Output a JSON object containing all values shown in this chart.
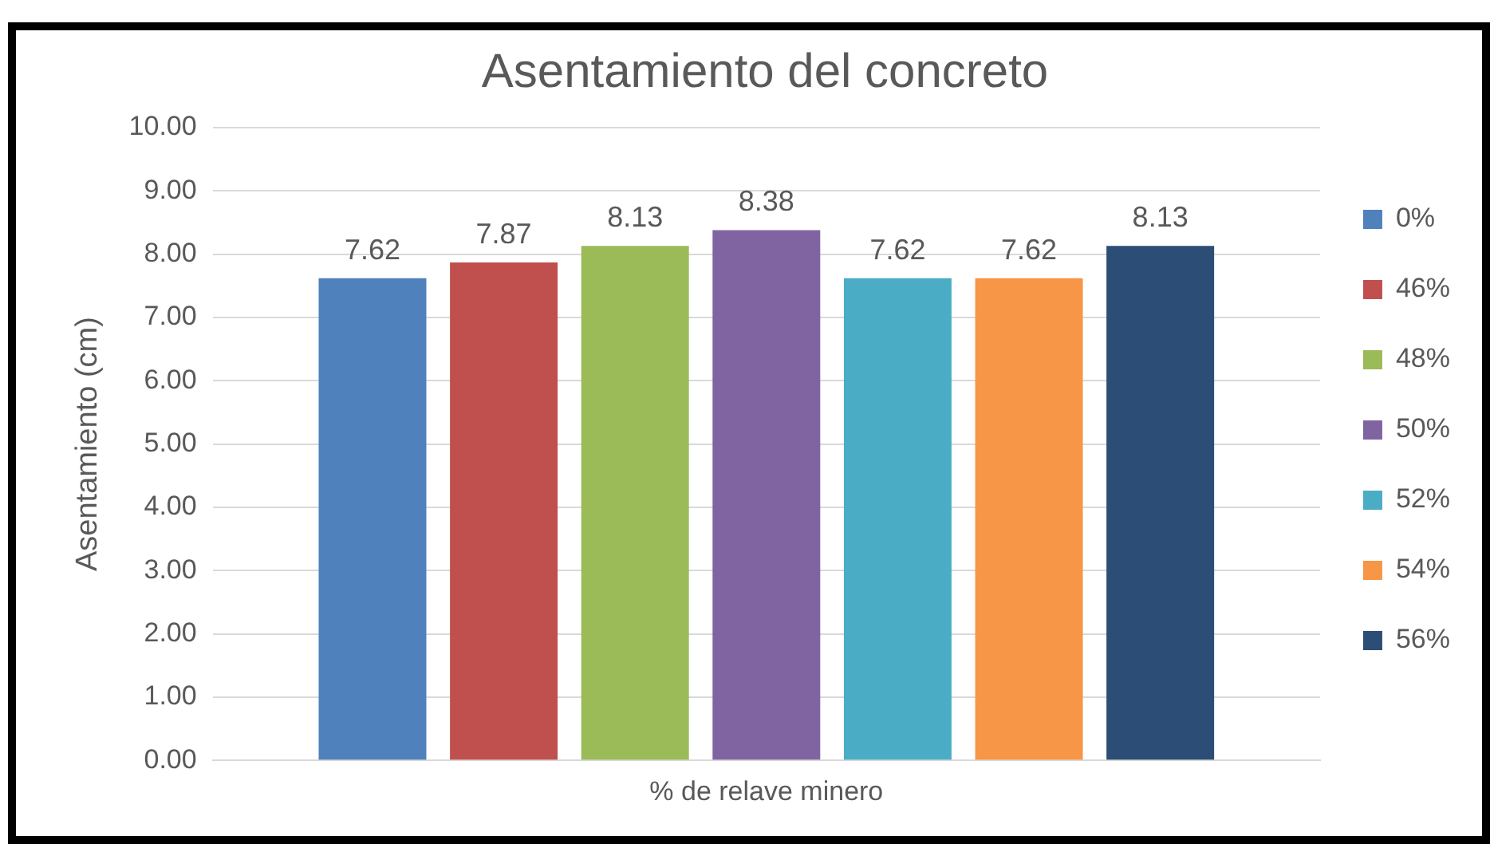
{
  "chart_data": {
    "type": "bar",
    "title": "Asentamiento del concreto",
    "xlabel": "% de relave minero",
    "ylabel": "Asentamiento (cm)",
    "categories": [
      null
    ],
    "series": [
      {
        "name": "0%",
        "color": "#4f81bd",
        "values": [
          7.62
        ]
      },
      {
        "name": "46%",
        "color": "#c0504d",
        "values": [
          7.87
        ]
      },
      {
        "name": "48%",
        "color": "#9bbb59",
        "values": [
          8.13
        ]
      },
      {
        "name": "50%",
        "color": "#8064a2",
        "values": [
          8.38
        ]
      },
      {
        "name": "52%",
        "color": "#4bacc6",
        "values": [
          7.62
        ]
      },
      {
        "name": "54%",
        "color": "#f79646",
        "values": [
          7.62
        ]
      },
      {
        "name": "56%",
        "color": "#2c4d75",
        "values": [
          8.13
        ]
      }
    ],
    "ylim": [
      0,
      10
    ],
    "yticks": [
      {
        "value": 0,
        "label": "0.00"
      },
      {
        "value": 1,
        "label": "1.00"
      },
      {
        "value": 2,
        "label": "2.00"
      },
      {
        "value": 3,
        "label": "3.00"
      },
      {
        "value": 4,
        "label": "4.00"
      },
      {
        "value": 5,
        "label": "5.00"
      },
      {
        "value": 6,
        "label": "6.00"
      },
      {
        "value": 7,
        "label": "7.00"
      },
      {
        "value": 8,
        "label": "8.00"
      },
      {
        "value": 9,
        "label": "9.00"
      },
      {
        "value": 10,
        "label": "10.00"
      }
    ],
    "grid": "y",
    "legend": "right",
    "data_labels": true
  }
}
